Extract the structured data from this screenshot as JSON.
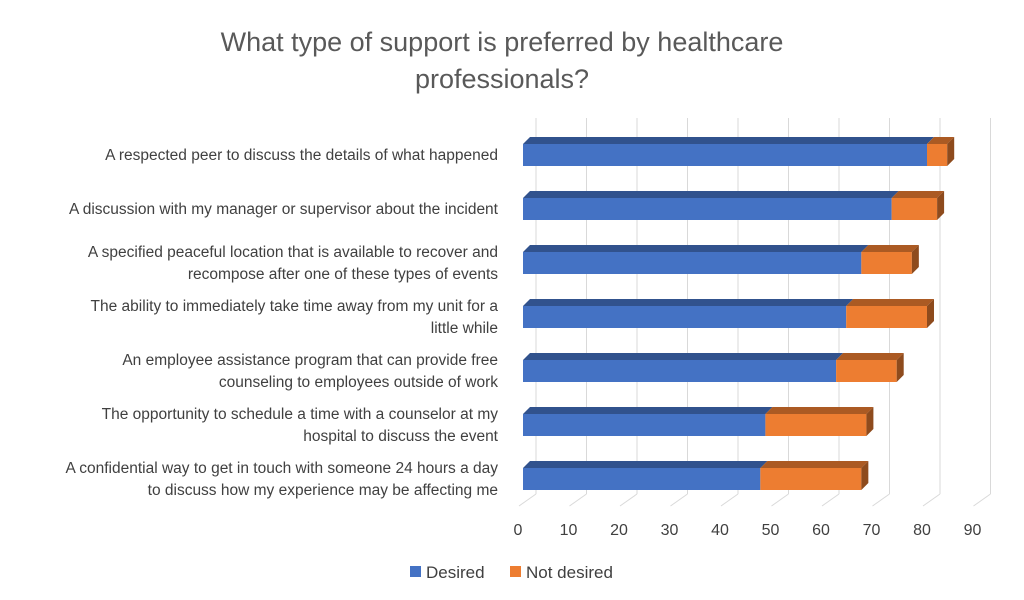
{
  "chart_data": {
    "type": "bar",
    "orientation": "horizontal",
    "stacked": true,
    "style": "3d",
    "title_lines": [
      "What type of support is preferred by healthcare",
      "professionals?"
    ],
    "categories": [
      [
        "A respected peer to discuss the details of what happened"
      ],
      [
        "A discussion with my manager or supervisor about the incident"
      ],
      [
        "A specified peaceful location that is available to recover and",
        "recompose after one of these types of events"
      ],
      [
        "The ability to immediately take time away from my unit for a",
        "little while"
      ],
      [
        "An employee assistance program that can provide free",
        "counseling to employees outside of work"
      ],
      [
        "The opportunity to schedule a time with a counselor at my",
        "hospital to discuss the event"
      ],
      [
        "A confidential way to get in touch with someone 24 hours a day",
        "to discuss how my experience may be affecting me"
      ]
    ],
    "series": [
      {
        "name": "Desired",
        "color": "#4472C4",
        "values": [
          80,
          73,
          67,
          64,
          62,
          48,
          47
        ]
      },
      {
        "name": "Not desired",
        "color": "#ED7D31",
        "values": [
          4,
          9,
          10,
          16,
          12,
          20,
          20
        ]
      }
    ],
    "xlim": [
      0,
      90
    ],
    "xticks": [
      "0",
      "10",
      "20",
      "30",
      "40",
      "50",
      "60",
      "70",
      "80",
      "90"
    ],
    "grid": true,
    "legend_position": "bottom"
  }
}
